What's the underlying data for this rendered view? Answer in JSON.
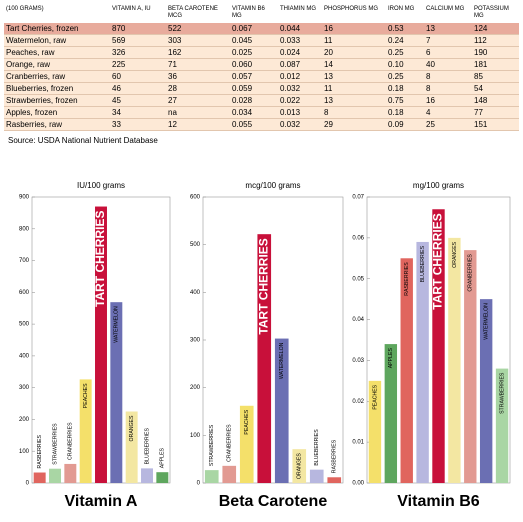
{
  "table": {
    "header": [
      "(100 GRAMS)",
      "VITAMIN A, IU",
      "BETA CAROTENE MCG",
      "VITAMIN B6 MG",
      "THIAMIN MG",
      "PHOSPHORUS MG",
      "IRON MG",
      "CALCIUM MG",
      "POTASSIUM MG"
    ],
    "rows": [
      [
        "Tart Cherries, frozen",
        "870",
        "522",
        "0.067",
        "0.044",
        "16",
        "0.53",
        "13",
        "124"
      ],
      [
        "Watermelon, raw",
        "569",
        "303",
        "0.045",
        "0.033",
        "11",
        "0.24",
        "7",
        "112"
      ],
      [
        "Peaches, raw",
        "326",
        "162",
        "0.025",
        "0.024",
        "20",
        "0.25",
        "6",
        "190"
      ],
      [
        "Orange, raw",
        "225",
        "71",
        "0.060",
        "0.087",
        "14",
        "0.10",
        "40",
        "181"
      ],
      [
        "Cranberries, raw",
        "60",
        "36",
        "0.057",
        "0.012",
        "13",
        "0.25",
        "8",
        "85"
      ],
      [
        "Blueberries, frozen",
        "46",
        "28",
        "0.059",
        "0.032",
        "11",
        "0.18",
        "8",
        "54"
      ],
      [
        "Strawberries, frozen",
        "45",
        "27",
        "0.028",
        "0.022",
        "13",
        "0.75",
        "16",
        "148"
      ],
      [
        "Apples, frozen",
        "34",
        "na",
        "0.034",
        "0.013",
        "8",
        "0.18",
        "4",
        "77"
      ],
      [
        "Rasberries, raw",
        "33",
        "12",
        "0.055",
        "0.032",
        "29",
        "0.09",
        "25",
        "151"
      ]
    ]
  },
  "source": "Source: USDA National Nutrient Database",
  "chart_data": [
    {
      "type": "bar",
      "title": "Vitamin A",
      "subtitle": "IU/100 grams",
      "categories": [
        "RASBERRIES",
        "STRAWBERRIES",
        "CRANBERRIES",
        "PEACHES",
        "TART CHERRIES",
        "WATERMELON",
        "ORANGES",
        "BLUEBERRIES",
        "APPLES"
      ],
      "values": [
        33,
        45,
        60,
        326,
        870,
        569,
        225,
        46,
        34
      ],
      "colors": [
        "#e0655e",
        "#a9d6a4",
        "#e29a92",
        "#f4e06a",
        "#c8103a",
        "#6b6fb3",
        "#f3e7a2",
        "#b7b7df",
        "#5ea65e"
      ],
      "ylim": [
        0,
        900
      ],
      "yticks": [
        0,
        100,
        200,
        300,
        400,
        500,
        600,
        700,
        800,
        900
      ]
    },
    {
      "type": "bar",
      "title": "Beta Carotene",
      "subtitle": "mcg/100 grams",
      "categories": [
        "STRAWBERRIES",
        "CRANBERRIES",
        "PEACHES",
        "TART CHERRIES",
        "WATERMELON",
        "ORANGES",
        "BLUEBERRIES",
        "RASBERRIES"
      ],
      "values": [
        27,
        36,
        162,
        522,
        303,
        71,
        28,
        12
      ],
      "colors": [
        "#a9d6a4",
        "#e29a92",
        "#f4e06a",
        "#c8103a",
        "#6b6fb3",
        "#f3e7a2",
        "#b7b7df",
        "#e0655e"
      ],
      "ylim": [
        0,
        600
      ],
      "yticks": [
        0,
        100,
        200,
        300,
        400,
        500,
        600
      ]
    },
    {
      "type": "bar",
      "title": "Vitamin B6",
      "subtitle": "mg/100 grams",
      "categories": [
        "PEACHES",
        "APPLES",
        "RASBERRIES",
        "BLUEBERRIES",
        "TART CHERRIES",
        "ORANGES",
        "CRANBERRIES",
        "WATERMELON",
        "STRAWBERRIES"
      ],
      "values": [
        0.025,
        0.034,
        0.055,
        0.059,
        0.067,
        0.06,
        0.057,
        0.045,
        0.028
      ],
      "colors": [
        "#f4e06a",
        "#5ea65e",
        "#e0655e",
        "#b7b7df",
        "#c8103a",
        "#f3e7a2",
        "#e29a92",
        "#6b6fb3",
        "#a9d6a4"
      ],
      "ylim": [
        0,
        0.07
      ],
      "yticks": [
        {
          "value": 0,
          "label": "0.00"
        },
        0.01,
        0.02,
        0.03,
        0.04,
        0.05,
        0.06,
        0.07
      ]
    }
  ]
}
